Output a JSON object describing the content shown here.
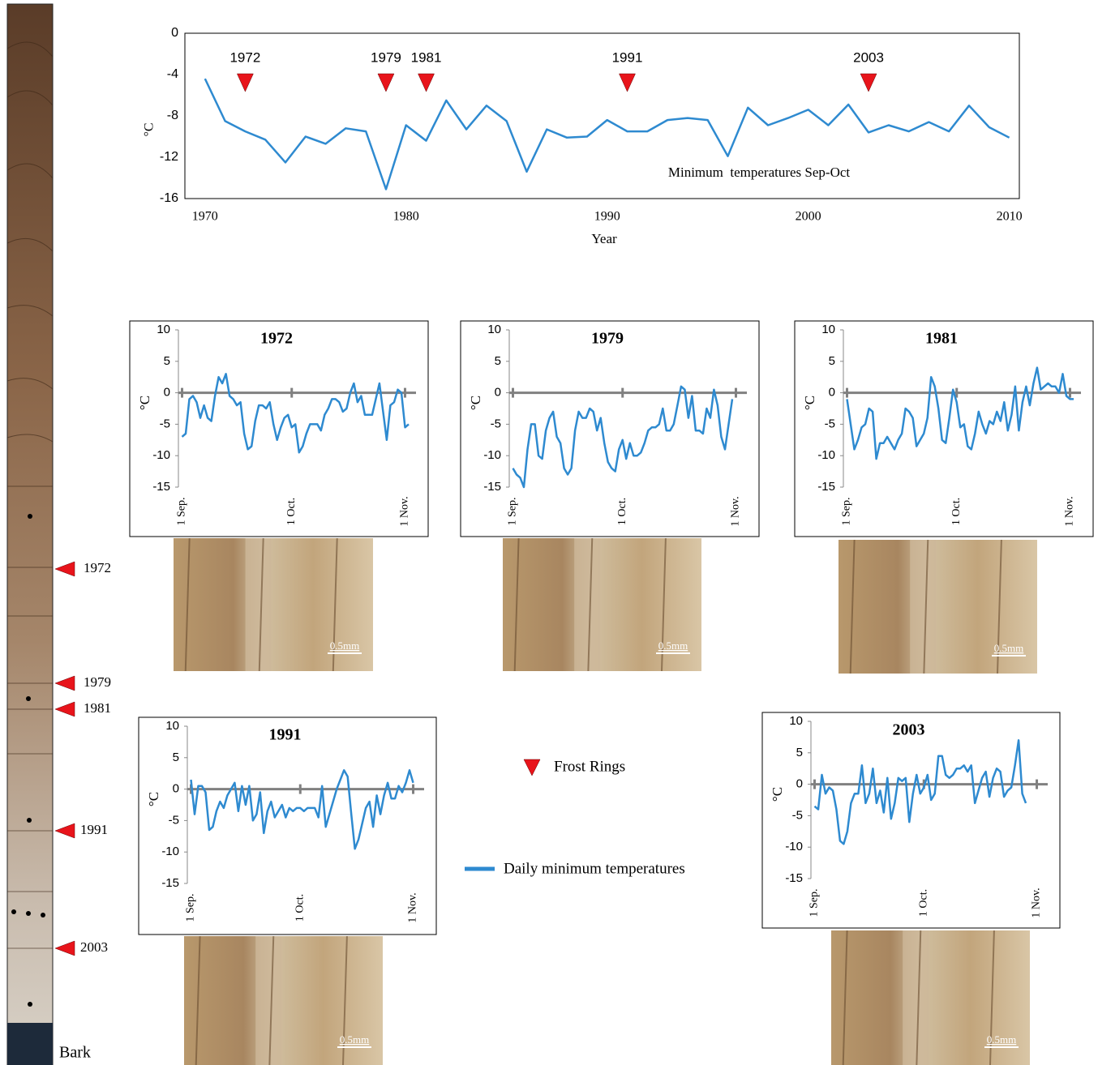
{
  "chart_data": [
    {
      "type": "line",
      "xlabel": "Year",
      "ylabel": "°C",
      "annotation": "Minimum  temperatures Sep-Oct",
      "x": [
        1970,
        1971,
        1972,
        1973,
        1974,
        1975,
        1976,
        1977,
        1978,
        1979,
        1980,
        1981,
        1982,
        1983,
        1984,
        1985,
        1986,
        1987,
        1988,
        1989,
        1990,
        1991,
        1992,
        1993,
        1994,
        1995,
        1996,
        1997,
        1998,
        1999,
        2000,
        2001,
        2002,
        2003,
        2004,
        2005,
        2006,
        2007,
        2008,
        2009,
        2010
      ],
      "values": [
        -4.4,
        -8.5,
        -9.5,
        -10.3,
        -12.5,
        -10.0,
        -10.7,
        -9.2,
        -9.5,
        -15.1,
        -8.9,
        -10.4,
        -6.5,
        -9.3,
        -7.0,
        -8.5,
        -13.4,
        -9.3,
        -10.1,
        -10.0,
        -8.4,
        -9.5,
        -9.5,
        -8.4,
        -8.2,
        -8.4,
        -11.9,
        -7.2,
        -8.9,
        -8.2,
        -7.4,
        -8.9,
        -6.9,
        -9.6,
        -8.9,
        -9.5,
        -8.6,
        -9.5,
        -7.0,
        -9.1,
        -10.1
      ],
      "color": "#2e8ad0",
      "frost_years": [
        1972,
        1979,
        1981,
        1991,
        2003
      ],
      "marker_color": "#e8141b",
      "xlim": [
        1969,
        2010.5
      ],
      "xticks": [
        1970,
        1980,
        1990,
        2000,
        2010
      ],
      "ylim": [
        -16,
        0
      ],
      "yticks": [
        0,
        -4,
        -8,
        -12,
        -16
      ],
      "grid": false
    },
    {
      "type": "line",
      "title": "1972",
      "ylabel": "°C",
      "color": "#2e8ad0",
      "zero_line": true,
      "values": [
        -7,
        -6.5,
        -1,
        -0.5,
        -1.5,
        -4,
        -2,
        -4,
        -4.5,
        -0.5,
        2.5,
        1.5,
        3,
        -0.5,
        -1,
        -2,
        -1.5,
        -6.5,
        -9,
        -8.5,
        -4.5,
        -2,
        -2,
        -2.5,
        -1.5,
        -5,
        -7.5,
        -5.5,
        -4,
        -3.5,
        -5.5,
        -5,
        -9.5,
        -8.5,
        -6.5,
        -5,
        -5,
        -5,
        -6,
        -3.5,
        -2.5,
        -1,
        -1,
        -1.5,
        -3,
        -2.5,
        0,
        1.5,
        -1.5,
        -0.5,
        -3.5,
        -3.5,
        -3.5,
        -1,
        1.5,
        -3,
        -7.5,
        -2,
        -1.5,
        0.5,
        0,
        -5.5,
        -5
      ],
      "xlim": [
        -1,
        64
      ],
      "xticks": [
        {
          "value": 0,
          "label": "1 Sep."
        },
        {
          "value": 30,
          "label": "1 Oct."
        },
        {
          "value": 61,
          "label": "1 Nov."
        }
      ],
      "ylim": [
        -15,
        10
      ],
      "yticks": [
        10,
        5,
        0,
        -5,
        -10,
        -15
      ]
    },
    {
      "type": "line",
      "title": "1979",
      "ylabel": "°C",
      "color": "#2e8ad0",
      "zero_line": true,
      "values": [
        -12,
        -13,
        -13.5,
        -15,
        -9,
        -5,
        -5,
        -10,
        -10.5,
        -6,
        -4,
        -3,
        -7,
        -8,
        -12,
        -13,
        -12,
        -6,
        -3,
        -4,
        -4,
        -2.5,
        -3,
        -6,
        -4,
        -8,
        -11,
        -12,
        -12.5,
        -9,
        -7.5,
        -10.5,
        -8,
        -10,
        -10,
        -9.5,
        -8,
        -6,
        -5.5,
        -5.5,
        -5,
        -2.5,
        -6,
        -6,
        -5,
        -2,
        1,
        0.5,
        -4,
        -0.5,
        -6,
        -6,
        -6.5,
        -2.5,
        -4,
        0.5,
        -2,
        -7,
        -9,
        -5,
        -1
      ],
      "xlim": [
        -1,
        64
      ],
      "xticks": [
        {
          "value": 0,
          "label": "1 Sep."
        },
        {
          "value": 30,
          "label": "1 Oct."
        },
        {
          "value": 61,
          "label": "1 Nov."
        }
      ],
      "ylim": [
        -15,
        10
      ],
      "yticks": [
        10,
        5,
        0,
        -5,
        -10,
        -15
      ]
    },
    {
      "type": "line",
      "title": "1981",
      "ylabel": "°C",
      "color": "#2e8ad0",
      "zero_line": true,
      "values": [
        -1,
        -5,
        -9,
        -7.5,
        -5.5,
        -5,
        -2.5,
        -3,
        -10.5,
        -8,
        -8,
        -7,
        -8,
        -9,
        -7.5,
        -6.5,
        -2.5,
        -3,
        -4,
        -8.5,
        -7.5,
        -6.5,
        -4,
        2.5,
        1,
        -2.5,
        -7.5,
        -8,
        -4,
        0.5,
        -1.5,
        -5.5,
        -5,
        -8.5,
        -9,
        -6.5,
        -3,
        -5,
        -6.5,
        -4.5,
        -5,
        -3,
        -4.5,
        -1.5,
        -6,
        -3.5,
        1,
        -6,
        -1.5,
        1,
        -2,
        1.5,
        4,
        0.5,
        1,
        1.5,
        1,
        1,
        0,
        3,
        -0.5,
        -1,
        -1
      ],
      "xlim": [
        -1,
        64
      ],
      "xticks": [
        {
          "value": 0,
          "label": "1 Sep."
        },
        {
          "value": 30,
          "label": "1 Oct."
        },
        {
          "value": 61,
          "label": "1 Nov."
        }
      ],
      "ylim": [
        -15,
        10
      ],
      "yticks": [
        10,
        5,
        0,
        -5,
        -10,
        -15
      ]
    },
    {
      "type": "line",
      "title": "1991",
      "ylabel": "°C",
      "color": "#2e8ad0",
      "zero_line": true,
      "values": [
        1.5,
        -4,
        0.5,
        0.5,
        -0.5,
        -6.5,
        -6,
        -3.5,
        -2,
        -3,
        -1,
        0,
        1,
        -3.5,
        0.5,
        -2.5,
        0.5,
        -5,
        -4,
        -0.5,
        -7,
        -3.5,
        -2,
        -4.5,
        -3.5,
        -2.5,
        -4.5,
        -3,
        -3.5,
        -3,
        -3,
        -3.5,
        -3,
        -3,
        -3,
        -4.5,
        0.5,
        -6,
        -4,
        -2,
        0,
        1.5,
        3,
        2,
        -4,
        -9.5,
        -8,
        -5.5,
        -3,
        -2,
        -6,
        -1,
        -4,
        -1,
        1,
        -1.5,
        -1.5,
        0.5,
        -0.5,
        1,
        3,
        1
      ],
      "xlim": [
        -1,
        64
      ],
      "xticks": [
        {
          "value": 0,
          "label": "1 Sep."
        },
        {
          "value": 30,
          "label": "1 Oct."
        },
        {
          "value": 61,
          "label": "1 Nov."
        }
      ],
      "ylim": [
        -15,
        10
      ],
      "yticks": [
        10,
        5,
        0,
        -5,
        -10,
        -15
      ]
    },
    {
      "type": "line",
      "title": "2003",
      "ylabel": "°C",
      "color": "#2e8ad0",
      "zero_line": true,
      "values": [
        -3.5,
        -4,
        1.5,
        -1.5,
        -0.5,
        -1,
        -4,
        -9,
        -9.5,
        -7.5,
        -3,
        -1.5,
        -1.5,
        3,
        -3,
        -1.5,
        2.5,
        -3,
        -1,
        -4.5,
        1,
        -5.5,
        -3,
        1,
        0.5,
        1,
        -6,
        -1.5,
        1.5,
        -1.5,
        -0.5,
        1.5,
        -2.5,
        -1.5,
        4.5,
        4.5,
        1.5,
        1,
        1.5,
        2.5,
        2.5,
        3,
        2,
        3,
        -3,
        -1,
        1,
        2,
        -2,
        1,
        2.5,
        2,
        -2,
        -1,
        -0.5,
        3,
        7,
        -1.5,
        -3
      ],
      "xlim": [
        -1,
        64
      ],
      "xticks": [
        {
          "value": 0,
          "label": "1 Sep."
        },
        {
          "value": 30,
          "label": "1 Oct."
        },
        {
          "value": 61,
          "label": "1 Nov."
        }
      ],
      "ylim": [
        -15,
        10
      ],
      "yticks": [
        10,
        5,
        0,
        -5,
        -10,
        -15
      ]
    }
  ],
  "core": {
    "labels": [
      "1972",
      "1979",
      "1981",
      "1991",
      "2003"
    ],
    "bark": "Bark"
  },
  "legend": {
    "frost_rings": "Frost Rings",
    "daily": "Daily minimum temperatures"
  },
  "scale_bars": [
    "0.5mm",
    "0.5mm",
    "0.5mm",
    "0.5mm",
    "0.5mm"
  ]
}
